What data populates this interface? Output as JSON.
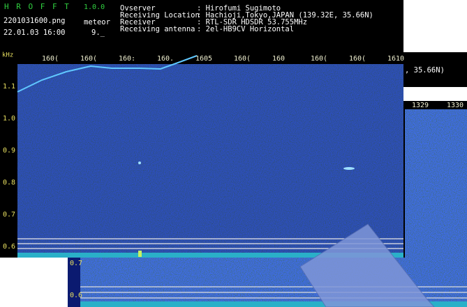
{
  "header": {
    "app": "H R O F F T",
    "version": "1.0.0",
    "file": "2201031600.png",
    "mode": "meteor",
    "datetime": "22.01.03 16:00",
    "count": "9._",
    "fields": [
      {
        "key": "Ovserver",
        "value": ": Hirofumi Sugimoto"
      },
      {
        "key": "Receiving Location",
        "value": ": Hachioji,Tokyo,JAPAN (139.32E, 35.66N)"
      },
      {
        "key": "Receiver",
        "value": ": RTL-SDR HDSDR  53.755MHz"
      },
      {
        "key": "Receiving antenna",
        "value": ": 2el-HB9CV Horizontal"
      }
    ]
  },
  "main_window": {
    "unit": "kHz",
    "x_labels": [
      "160(",
      "160(",
      "160:",
      "160.",
      "1605",
      "160(",
      "160",
      "160(",
      "160(",
      "1610"
    ],
    "y_labels": [
      "1.1",
      "1.0",
      "0.9",
      "0.8",
      "0.7",
      "0.6"
    ]
  },
  "right_window": {
    "header_text": ", 35.66N)",
    "x_labels": [
      "1329",
      "1330"
    ]
  },
  "bottom_window": {
    "y_labels": [
      "0.7",
      "0.6"
    ]
  }
}
